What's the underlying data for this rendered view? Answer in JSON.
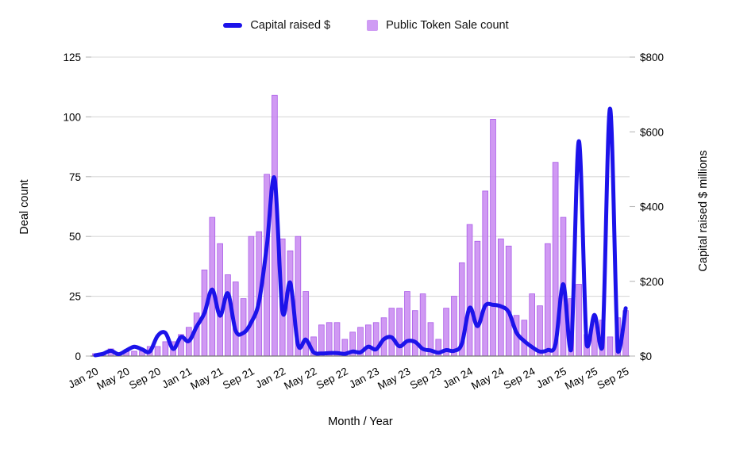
{
  "legend": [
    {
      "label": "Capital raised $",
      "color": "#1c13ea",
      "type": "line"
    },
    {
      "label": "Public Token Sale count",
      "color": "#cf9cf4",
      "type": "square"
    }
  ],
  "chart_data": {
    "type": "combo-bar-line",
    "title": "",
    "xlabel": "Month / Year",
    "x_tick_every": 4,
    "x": [
      "Jan 20",
      "Feb 20",
      "Mar 20",
      "Apr 20",
      "May 20",
      "Jun 20",
      "Jul 20",
      "Aug 20",
      "Sep 20",
      "Oct 20",
      "Nov 20",
      "Dec 20",
      "Jan 21",
      "Feb 21",
      "Mar 21",
      "Apr 21",
      "May 21",
      "Jun 21",
      "Jul 21",
      "Aug 21",
      "Sep 21",
      "Oct 21",
      "Nov 21",
      "Dec 21",
      "Jan 22",
      "Feb 22",
      "Mar 22",
      "Apr 22",
      "May 22",
      "Jun 22",
      "Jul 22",
      "Aug 22",
      "Sep 22",
      "Oct 22",
      "Nov 22",
      "Dec 22",
      "Jan 23",
      "Feb 23",
      "Mar 23",
      "Apr 23",
      "May 23",
      "Jun 23",
      "Jul 23",
      "Aug 23",
      "Sep 23",
      "Oct 23",
      "Nov 23",
      "Dec 23",
      "Jan 24",
      "Feb 24",
      "Mar 24",
      "Apr 24",
      "May 24",
      "Jun 24",
      "Jul 24",
      "Aug 24",
      "Sep 24",
      "Oct 24",
      "Nov 24",
      "Dec 24",
      "Jan 25",
      "Feb 25",
      "Mar 25",
      "Apr 25",
      "May 25",
      "Jun 25",
      "Jul 25",
      "Aug 25",
      "Sep 25"
    ],
    "series": [
      {
        "name": "Public Token Sale count",
        "type": "bar",
        "axis": "left",
        "color": "#c887f1",
        "stroke": "#aa5ce8",
        "values": [
          1,
          1,
          3,
          1,
          2,
          2,
          2,
          4,
          4,
          6,
          6,
          9,
          12,
          18,
          36,
          58,
          47,
          34,
          31,
          24,
          50,
          52,
          76,
          109,
          49,
          44,
          50,
          27,
          8,
          13,
          14,
          14,
          7,
          10,
          12,
          13,
          14,
          16,
          20,
          20,
          27,
          19,
          26,
          14,
          7,
          20,
          25,
          39,
          55,
          48,
          69,
          99,
          49,
          46,
          17,
          15,
          26,
          21,
          47,
          81,
          58,
          24,
          30,
          9,
          15,
          15,
          8,
          16,
          19
        ]
      },
      {
        "name": "Capital raised $",
        "type": "line",
        "axis": "right",
        "color": "#1c13ea",
        "values": [
          2,
          6,
          14,
          5,
          15,
          25,
          18,
          12,
          54,
          62,
          19,
          51,
          40,
          79,
          115,
          178,
          108,
          168,
          68,
          62,
          90,
          146,
          295,
          475,
          120,
          196,
          30,
          44,
          10,
          7,
          8,
          8,
          6,
          12,
          10,
          25,
          18,
          45,
          50,
          26,
          40,
          38,
          19,
          15,
          9,
          16,
          14,
          33,
          129,
          80,
          135,
          137,
          133,
          118,
          63,
          40,
          24,
          12,
          16,
          32,
          192,
          16,
          575,
          30,
          110,
          22,
          662,
          12,
          128
        ]
      }
    ],
    "left_axis": {
      "title": "Deal count",
      "min": 0,
      "max": 125,
      "ticks": [
        "0",
        "25",
        "50",
        "75",
        "100",
        "125"
      ],
      "tick_values": [
        0,
        25,
        50,
        75,
        100,
        125
      ]
    },
    "right_axis": {
      "title": "Capital raised $ millions",
      "min": 0,
      "max": 800,
      "ticks": [
        "$0",
        "$200",
        "$400",
        "$600",
        "$800"
      ],
      "tick_values": [
        0,
        200,
        400,
        600,
        800
      ]
    },
    "grid": {
      "color": "#d9d9d9",
      "baseline_color": "#757575"
    }
  }
}
